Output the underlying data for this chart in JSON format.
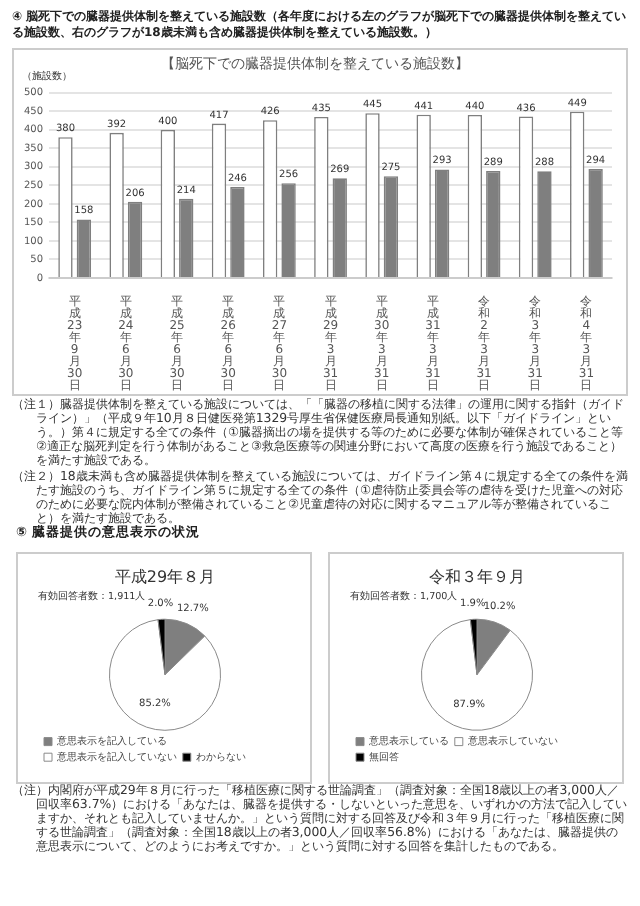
{
  "chart_data": [
    {
      "type": "bar",
      "title": "④ 脳死下での臓器提供体制を整えている施設数（各年度における左のグラフが脳死下での臓器提供体制を整えている施設数、右のグラフが18歳未満も含め臓器提供体制を整えている施設数。）",
      "subtitle": "【脳死下での臓器提供体制を整えている施設数】",
      "ylabel": "（施設数）",
      "categories": [
        "平成23年9月30日",
        "平成24年6月30日",
        "平成25年6月30日",
        "平成26年6月30日",
        "平成27年6月30日",
        "平成29年3月31日",
        "平成30年3月31日",
        "平成31年3月31日",
        "令和2年3月31日",
        "令和3年3月31日",
        "令和4年3月31日"
      ],
      "series": [
        {
          "color": "#ffffff",
          "values": [
            380,
            392,
            400,
            417,
            426,
            435,
            445,
            441,
            440,
            436,
            449
          ]
        },
        {
          "color": "#7f7f7f",
          "values": [
            158,
            206,
            214,
            246,
            256,
            269,
            275,
            293,
            289,
            288,
            294
          ]
        }
      ],
      "ylim": [
        0,
        500
      ],
      "yticks": [
        0,
        50,
        100,
        150,
        200,
        250,
        300,
        350,
        400,
        450,
        500
      ],
      "grid": "y",
      "data_labels": true,
      "legend": false,
      "annotations": [
        "（注１）臓器提供体制を整えている施設については、「「臓器の移植に関する法律」の運用に関する指針（ガイドライン）」（平成９年10月８日健医発第1329号厚生省保健医療局長通知別紙。以下「ガイドライン」という。）第４に規定する全ての条件（①臓器摘出の場を提供する等のために必要な体制が確保されていること等②適正な脳死判定を行う体制があること③救急医療等の関連分野において高度の医療を行う施設であること）を満たす施設である。",
        "（注２）18歳未満も含め臓器提供体制を整えている施設については、ガイドライン第４に規定する全ての条件を満たす施設のうち、ガイドライン第５に規定する全ての条件（①虐待防止委員会等の虐待を受けた児童への対応のために必要な院内体制が整備されていること②児童虐待の対応に関するマニュアル等が整備されていること）を満たす施設である。"
      ]
    },
    {
      "type": "pie",
      "title": "平成29年８月",
      "subtitle": "有効回答者数：1,911人",
      "categories": [
        "意思表示を記入している",
        "意思表示を記入していない",
        "わからない"
      ],
      "values": [
        12.7,
        85.2,
        2.0
      ],
      "colors": [
        "#7f7f7f",
        "#ffffff",
        "#000000"
      ],
      "value_labels": [
        "12.7%",
        "85.2%",
        "2.0%"
      ],
      "legend": "bottom",
      "annotations": [
        "⑤ 臓器提供の意思表示の状況"
      ]
    },
    {
      "type": "pie",
      "title": "令和３年９月",
      "subtitle": "有効回答者数：1,700人",
      "categories": [
        "意思表示している",
        "意思表示していない",
        "無回答"
      ],
      "values": [
        10.2,
        87.9,
        1.9
      ],
      "colors": [
        "#7f7f7f",
        "#ffffff",
        "#000000"
      ],
      "value_labels": [
        "10.2%",
        "87.9%",
        "1.9%"
      ],
      "legend": "bottom",
      "annotations": [
        "（注）内閣府が平成29年８月に行った「移植医療に関する世論調査」（調査対象：全国18歳以上の者3,000人／回収率63.7%）における「あなたは、臓器を提供する・しないといった意思を、いずれかの方法で記入していますか、それとも記入していませんか。」という質問に対する回答及び令和３年９月に行った「移植医療に関する世論調査」（調査対象：全国18歳以上の者3,000人／回収率56.8%）における「あなたは、臓器提供の意思表示について、どのようにお考えですか。」という質問に対する回答を集計したものである。"
      ]
    }
  ]
}
